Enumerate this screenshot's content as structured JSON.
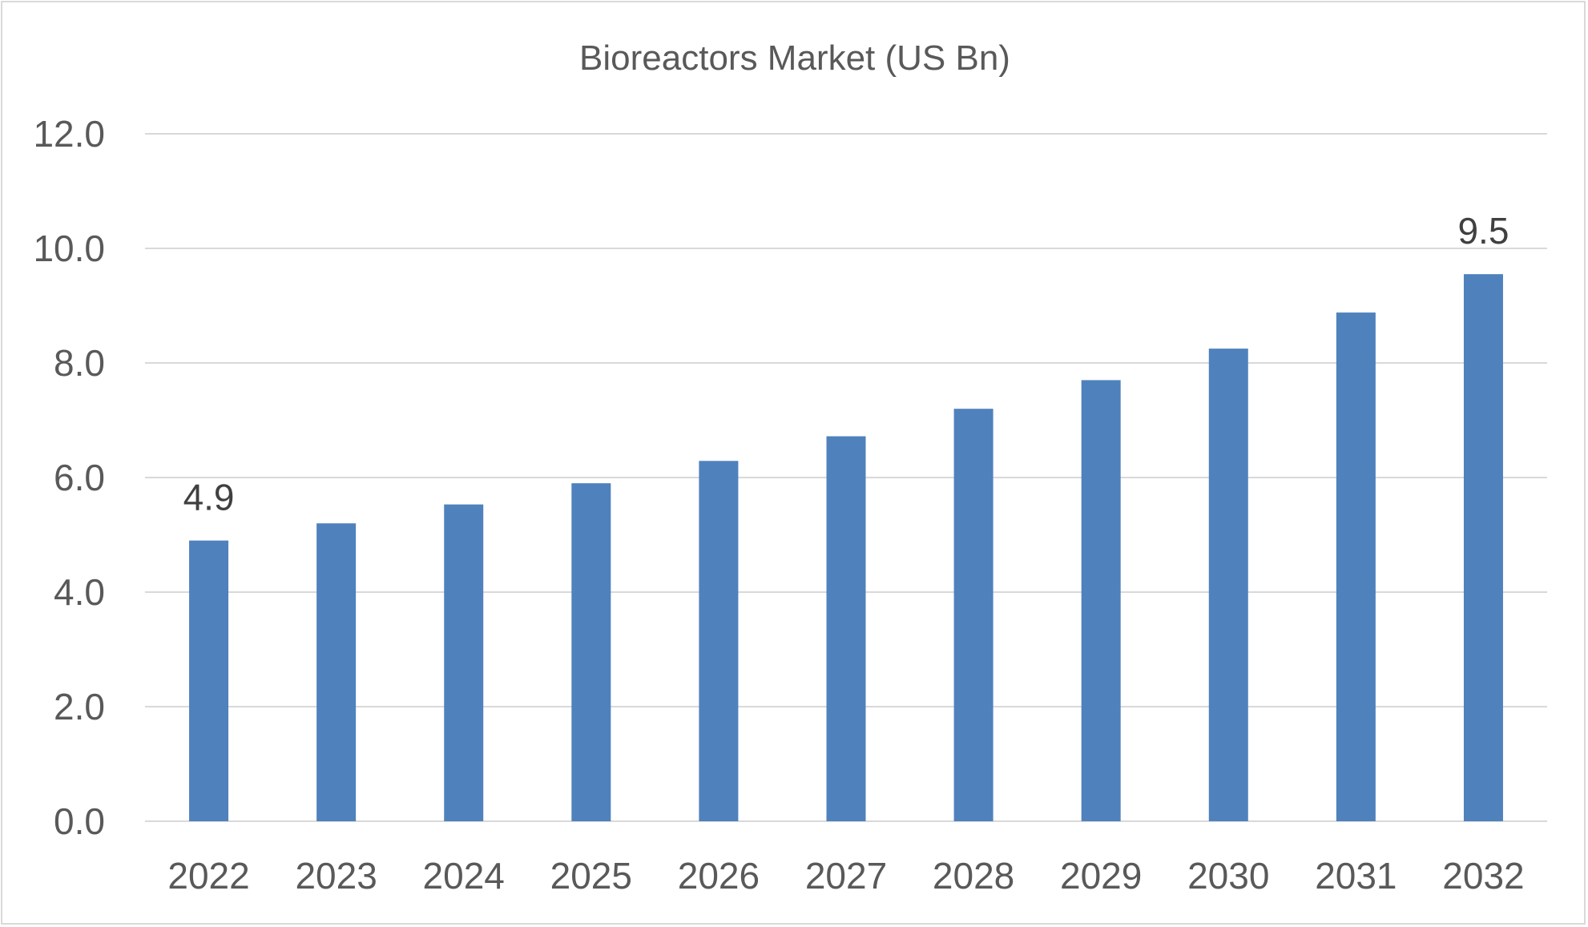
{
  "chart_data": {
    "type": "bar",
    "title": "Bioreactors Market (US Bn)",
    "xlabel": "",
    "ylabel": "",
    "categories": [
      "2022",
      "2023",
      "2024",
      "2025",
      "2026",
      "2027",
      "2028",
      "2029",
      "2030",
      "2031",
      "2032"
    ],
    "series": [
      {
        "values": [
          4.9,
          5.2,
          5.53,
          5.9,
          6.29,
          6.72,
          7.2,
          7.7,
          8.25,
          8.88,
          9.55
        ]
      }
    ],
    "data_labels": [
      {
        "index": 0,
        "text": "4.9"
      },
      {
        "index": 10,
        "text": "9.5"
      }
    ],
    "ylim": [
      0,
      12
    ],
    "yticks": [
      0,
      2,
      4,
      6,
      8,
      10,
      12
    ],
    "ytick_labels": [
      "0.0",
      "2.0",
      "4.0",
      "6.0",
      "8.0",
      "10.0",
      "12.0"
    ],
    "grid": true,
    "legend": "none",
    "bar_color": "#4f81bd"
  }
}
